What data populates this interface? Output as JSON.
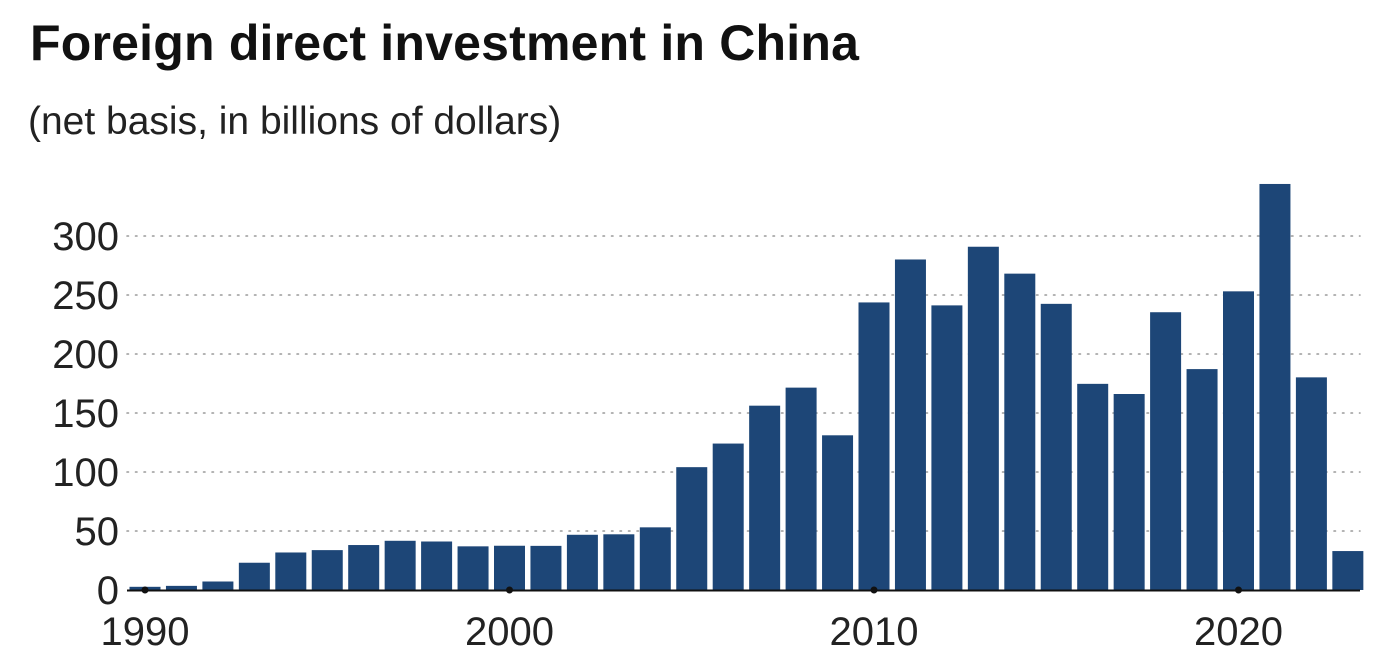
{
  "chart_data": {
    "type": "bar",
    "title": "Foreign direct investment in China",
    "subtitle": "(net basis, in billions of dollars)",
    "xlabel": "",
    "ylabel": "",
    "x": [
      1990,
      1991,
      1992,
      1993,
      1994,
      1995,
      1996,
      1997,
      1998,
      1999,
      2000,
      2001,
      2002,
      2003,
      2004,
      2005,
      2006,
      2007,
      2008,
      2009,
      2010,
      2011,
      2012,
      2013,
      2014,
      2015,
      2016,
      2017,
      2018,
      2019,
      2020,
      2021,
      2022,
      2023
    ],
    "values": [
      2.7,
      3.5,
      7.2,
      23.1,
      31.8,
      33.8,
      38.1,
      41.7,
      41.1,
      37.0,
      37.5,
      37.4,
      46.8,
      47.2,
      53.1,
      104.1,
      124.1,
      156.2,
      171.5,
      131.1,
      243.7,
      280.1,
      241.2,
      290.9,
      268.1,
      242.5,
      174.7,
      166.1,
      235.4,
      187.2,
      253.1,
      344.1,
      180.2,
      33.0
    ],
    "xticks": [
      "1990",
      "2000",
      "2010",
      "2020"
    ],
    "yticks": [
      "0",
      "50",
      "100",
      "150",
      "200",
      "250",
      "300"
    ],
    "ylim": [
      0,
      350
    ],
    "grid": true,
    "bar_color": "#1d4677",
    "grid_color": "#9a9a9a",
    "axis_color": "#111111"
  }
}
